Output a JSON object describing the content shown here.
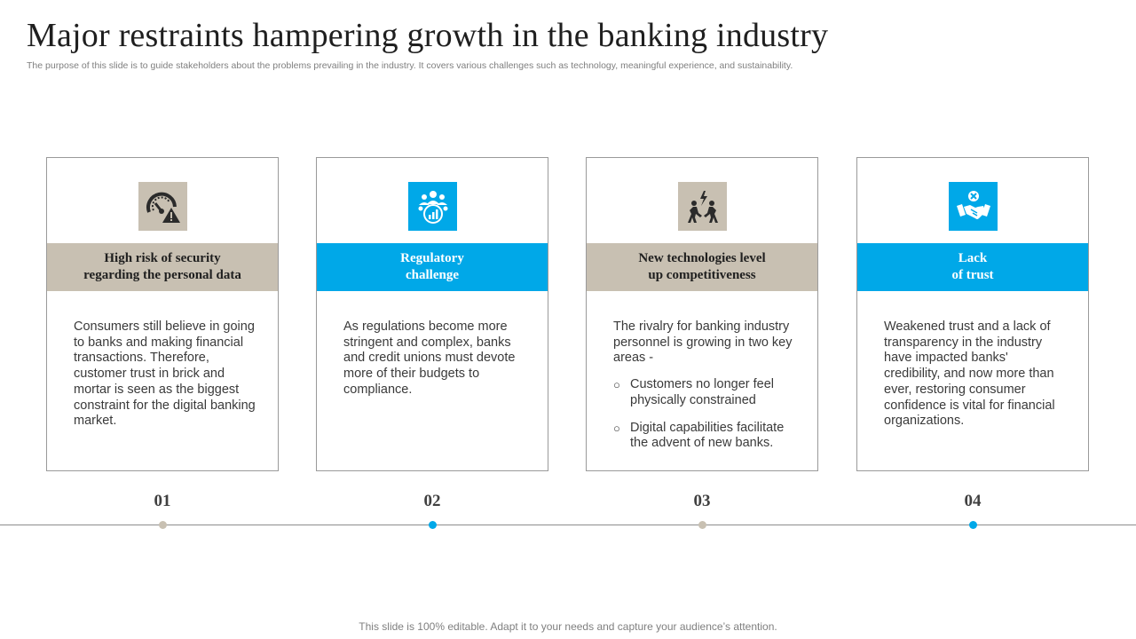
{
  "slide": {
    "title": "Major restraints hampering growth in the banking industry",
    "subtitle": "The purpose of this slide is to guide stakeholders about the problems prevailing in the industry. It covers various challenges such as technology, meaningful experience, and sustainability.",
    "footer": "This slide is 100% editable. Adapt it to your needs and capture your audience’s attention."
  },
  "colors": {
    "taupe": "#c8c0b2",
    "blue": "#00a8e8",
    "icon_dark": "#2b2b2b"
  },
  "cards": [
    {
      "number": "01",
      "icon": "speedometer-warning-icon",
      "heading": "High risk of security\nregarding the personal data",
      "body": "Consumers still believe in going to banks and making financial transactions. Therefore, customer trust in brick and mortar is seen as the biggest constraint for the digital banking market."
    },
    {
      "number": "02",
      "icon": "team-growth-chart-icon",
      "heading": "Regulatory\nchallenge",
      "body": "As regulations become more stringent and complex, banks and credit unions must devote more of their budgets to compliance."
    },
    {
      "number": "03",
      "icon": "people-competition-icon",
      "heading": "New technologies level\nup competitiveness",
      "body": "The rivalry for banking industry personnel is growing in two key areas -",
      "bullets": [
        "Customers no longer feel physically constrained",
        "Digital capabilities facilitate the advent of new banks."
      ]
    },
    {
      "number": "04",
      "icon": "broken-trust-handshake-icon",
      "heading": "Lack\nof trust",
      "body": "Weakened trust and a lack of transparency in the industry have impacted banks' credibility, and now more than ever, restoring consumer confidence is vital for financial organizations."
    }
  ]
}
